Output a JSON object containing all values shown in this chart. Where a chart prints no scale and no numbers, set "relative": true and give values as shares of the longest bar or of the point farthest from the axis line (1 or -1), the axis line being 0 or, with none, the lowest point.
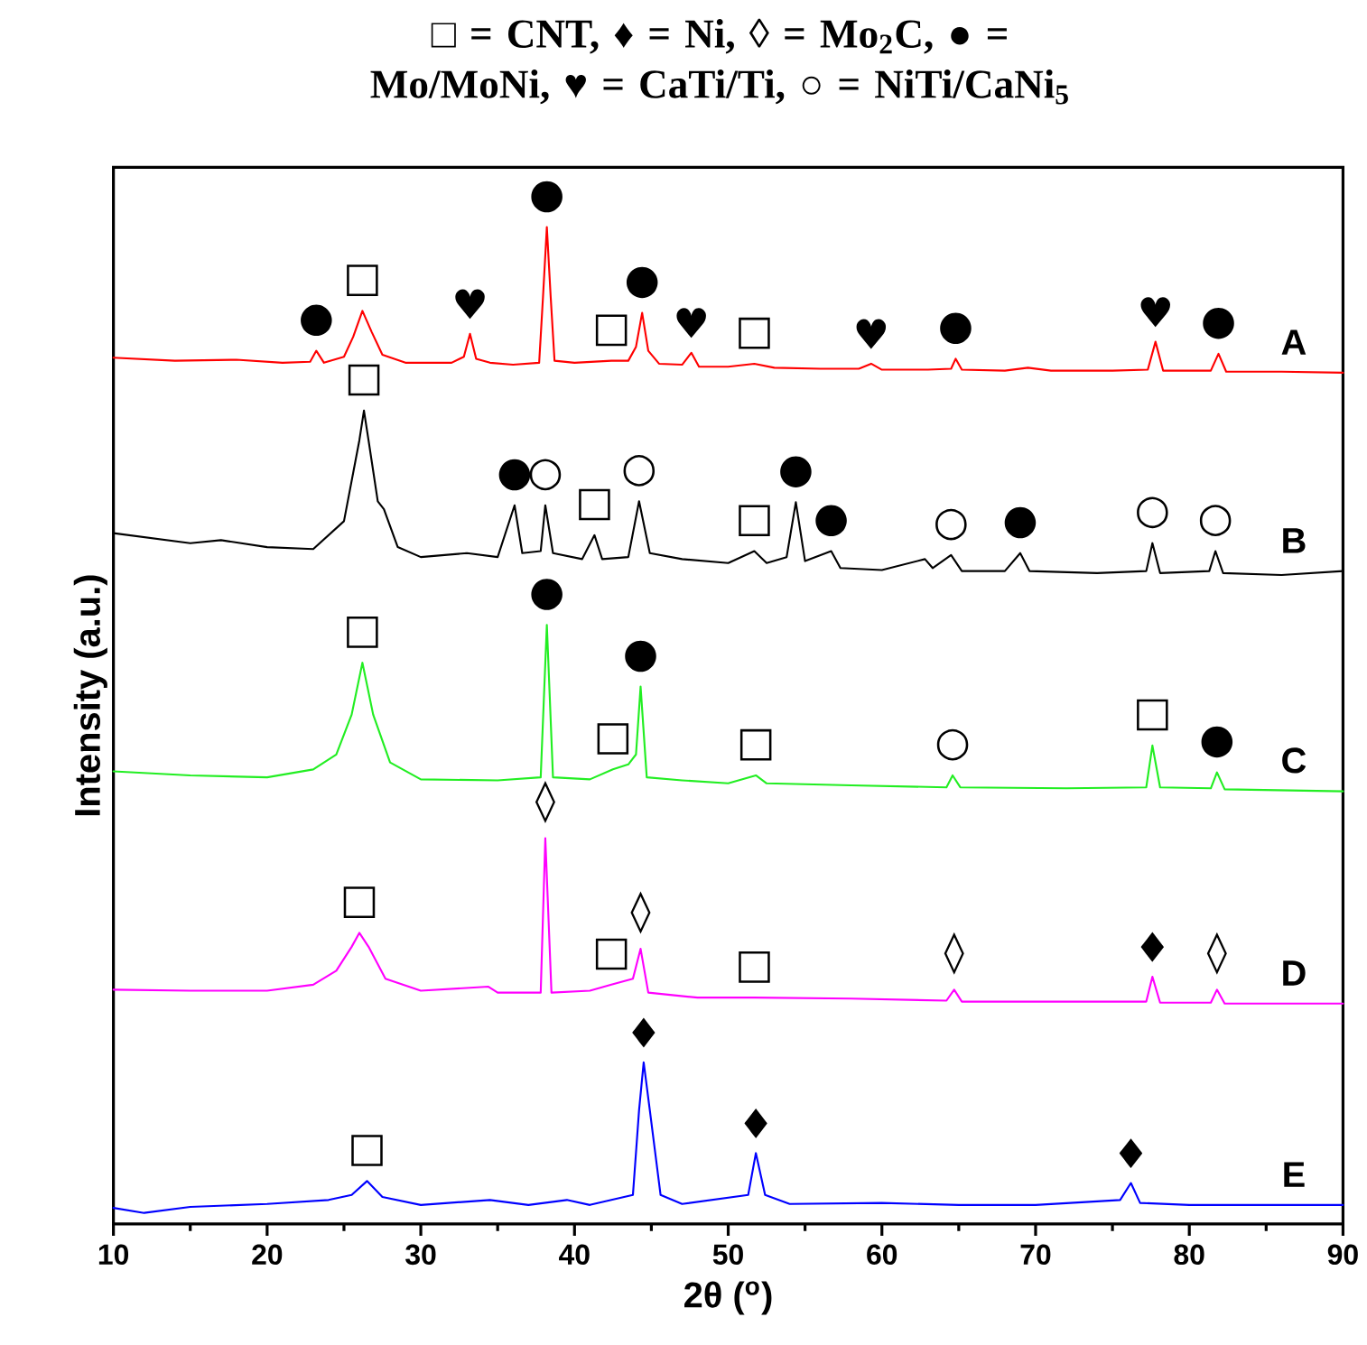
{
  "chart_data": {
    "type": "line",
    "relative": true,
    "title": "□ = CNT, ♦ = Ni, ◊ = Mo$_{2}$C, ● = Mo/MoNi, ♥ = CaTi/Ti, ○ = NiTi/CaNi$_{5}$",
    "xlabel": "2θ ($^{o}$)",
    "ylabel": "Intensity (a.u.)",
    "xlim": [
      10,
      90
    ],
    "xticks": [
      10,
      20,
      30,
      40,
      50,
      60,
      70,
      80,
      90
    ],
    "series": [
      {
        "name": "A",
        "color": "#ff0000",
        "x": [
          10,
          14,
          18,
          21,
          22.8,
          23.2,
          23.7,
          25,
          25.6,
          26.2,
          26.8,
          27.5,
          29,
          32,
          32.8,
          33.2,
          33.6,
          34.5,
          36,
          37.7,
          37.95,
          38.2,
          38.45,
          38.7,
          40,
          42.4,
          43.5,
          44.0,
          44.4,
          44.8,
          45.5,
          47,
          47.6,
          48.1,
          50,
          51.7,
          53,
          56,
          58.5,
          59.3,
          60,
          63,
          64.5,
          64.8,
          65.2,
          68,
          69.5,
          71,
          75,
          77.3,
          77.8,
          78.3,
          81.4,
          81.9,
          82.4,
          86,
          90
        ],
        "values": [
          0.869,
          0.866,
          0.867,
          0.864,
          0.865,
          0.876,
          0.864,
          0.87,
          0.89,
          0.916,
          0.895,
          0.872,
          0.864,
          0.864,
          0.87,
          0.893,
          0.868,
          0.864,
          0.862,
          0.864,
          0.93,
          1.0,
          0.93,
          0.866,
          0.864,
          0.866,
          0.866,
          0.88,
          0.914,
          0.876,
          0.863,
          0.862,
          0.874,
          0.86,
          0.86,
          0.863,
          0.859,
          0.858,
          0.858,
          0.863,
          0.857,
          0.857,
          0.858,
          0.868,
          0.857,
          0.856,
          0.859,
          0.856,
          0.856,
          0.857,
          0.885,
          0.856,
          0.856,
          0.873,
          0.855,
          0.855,
          0.854
        ]
      },
      {
        "name": "B",
        "color": "#000000",
        "x": [
          10,
          15,
          17,
          20,
          23,
          25.0,
          26.0,
          26.3,
          26.6,
          27.2,
          27.6,
          28.5,
          30,
          33,
          35,
          36.1,
          36.6,
          37.8,
          38.1,
          38.6,
          40.5,
          41.3,
          41.8,
          43.5,
          44.2,
          44.9,
          47,
          50,
          51.7,
          52.5,
          53.8,
          54.4,
          55,
          56.7,
          57.3,
          60,
          62.8,
          63.3,
          64.5,
          65.2,
          68,
          69.0,
          69.6,
          74,
          77.2,
          77.6,
          78.1,
          81.3,
          81.7,
          82.2,
          86,
          90
        ],
        "values": [
          0.693,
          0.683,
          0.686,
          0.679,
          0.677,
          0.705,
          0.786,
          0.816,
          0.786,
          0.725,
          0.717,
          0.679,
          0.669,
          0.673,
          0.669,
          0.721,
          0.673,
          0.675,
          0.721,
          0.673,
          0.667,
          0.691,
          0.667,
          0.669,
          0.725,
          0.673,
          0.667,
          0.663,
          0.675,
          0.663,
          0.669,
          0.724,
          0.665,
          0.675,
          0.658,
          0.656,
          0.667,
          0.658,
          0.671,
          0.655,
          0.655,
          0.673,
          0.655,
          0.653,
          0.655,
          0.683,
          0.653,
          0.655,
          0.675,
          0.653,
          0.651,
          0.655
        ]
      },
      {
        "name": "C",
        "color": "#22ee22",
        "x": [
          10,
          15,
          20,
          23,
          24.5,
          25.5,
          26.2,
          26.9,
          28,
          30,
          35,
          37.8,
          38.2,
          38.6,
          41,
          42.5,
          43.5,
          44.0,
          44.3,
          44.7,
          47,
          50,
          51.8,
          52.5,
          58,
          64.2,
          64.6,
          65.1,
          72,
          77.2,
          77.6,
          78.1,
          81.4,
          81.8,
          82.3,
          90
        ],
        "values": [
          0.454,
          0.45,
          0.448,
          0.456,
          0.471,
          0.511,
          0.563,
          0.511,
          0.463,
          0.446,
          0.445,
          0.448,
          0.601,
          0.448,
          0.446,
          0.456,
          0.461,
          0.471,
          0.539,
          0.448,
          0.445,
          0.442,
          0.45,
          0.442,
          0.44,
          0.438,
          0.45,
          0.438,
          0.437,
          0.438,
          0.48,
          0.438,
          0.437,
          0.453,
          0.436,
          0.434
        ]
      },
      {
        "name": "D",
        "color": "#ff00ff",
        "x": [
          10,
          15,
          20,
          23,
          24.5,
          25.5,
          26.0,
          26.6,
          27.7,
          30,
          34.4,
          35,
          37.8,
          38.1,
          38.5,
          41,
          42.4,
          43.8,
          44.3,
          44.8,
          48,
          51.7,
          58,
          64.2,
          64.7,
          65.2,
          70,
          77.2,
          77.6,
          78.1,
          81.4,
          81.8,
          82.3,
          90
        ],
        "values": [
          0.235,
          0.234,
          0.234,
          0.24,
          0.254,
          0.278,
          0.292,
          0.278,
          0.246,
          0.234,
          0.238,
          0.232,
          0.232,
          0.387,
          0.232,
          0.234,
          0.24,
          0.246,
          0.276,
          0.232,
          0.227,
          0.227,
          0.226,
          0.224,
          0.235,
          0.223,
          0.223,
          0.223,
          0.248,
          0.222,
          0.222,
          0.235,
          0.221,
          0.221
        ]
      },
      {
        "name": "E",
        "color": "#0000ff",
        "x": [
          10,
          12,
          15,
          20,
          24,
          25.5,
          26.5,
          27.5,
          30,
          34.5,
          37,
          39.5,
          41,
          43.8,
          44.2,
          44.5,
          44.9,
          45.6,
          47,
          51.3,
          51.8,
          52.4,
          54,
          60,
          65,
          70,
          75.5,
          76.2,
          76.8,
          80,
          90
        ],
        "values": [
          0.016,
          0.011,
          0.017,
          0.02,
          0.024,
          0.029,
          0.043,
          0.027,
          0.019,
          0.024,
          0.019,
          0.024,
          0.019,
          0.029,
          0.114,
          0.162,
          0.114,
          0.029,
          0.02,
          0.029,
          0.071,
          0.029,
          0.02,
          0.021,
          0.019,
          0.019,
          0.024,
          0.041,
          0.021,
          0.019,
          0.019
        ]
      }
    ],
    "annotations": [
      {
        "text": "●",
        "x": 23.2,
        "y": 0.876
      },
      {
        "text": "□",
        "x": 26.2,
        "y": 0.916
      },
      {
        "text": "♥",
        "x": 33.2,
        "y": 0.893
      },
      {
        "text": "●",
        "x": 38.2,
        "y": 1.0
      },
      {
        "text": "□",
        "x": 42.4,
        "y": 0.866
      },
      {
        "text": "●",
        "x": 44.4,
        "y": 0.914
      },
      {
        "text": "♥",
        "x": 47.6,
        "y": 0.874
      },
      {
        "text": "□",
        "x": 51.7,
        "y": 0.863
      },
      {
        "text": "♥",
        "x": 59.3,
        "y": 0.863
      },
      {
        "text": "●",
        "x": 64.8,
        "y": 0.868
      },
      {
        "text": "♥",
        "x": 77.8,
        "y": 0.885
      },
      {
        "text": "●",
        "x": 81.9,
        "y": 0.873
      },
      {
        "text": "□",
        "x": 26.3,
        "y": 0.816
      },
      {
        "text": "●",
        "x": 36.1,
        "y": 0.721
      },
      {
        "text": "○",
        "x": 38.1,
        "y": 0.721
      },
      {
        "text": "□",
        "x": 41.3,
        "y": 0.691
      },
      {
        "text": "○",
        "x": 44.2,
        "y": 0.725
      },
      {
        "text": "□",
        "x": 51.7,
        "y": 0.675
      },
      {
        "text": "●",
        "x": 54.4,
        "y": 0.724
      },
      {
        "text": "●",
        "x": 56.7,
        "y": 0.675
      },
      {
        "text": "○",
        "x": 64.5,
        "y": 0.671
      },
      {
        "text": "●",
        "x": 69.0,
        "y": 0.673
      },
      {
        "text": "○",
        "x": 77.6,
        "y": 0.683
      },
      {
        "text": "○",
        "x": 81.7,
        "y": 0.675
      },
      {
        "text": "□",
        "x": 26.2,
        "y": 0.563
      },
      {
        "text": "●",
        "x": 38.2,
        "y": 0.601
      },
      {
        "text": "□",
        "x": 42.5,
        "y": 0.456
      },
      {
        "text": "●",
        "x": 44.3,
        "y": 0.539
      },
      {
        "text": "□",
        "x": 51.8,
        "y": 0.45
      },
      {
        "text": "○",
        "x": 64.6,
        "y": 0.45
      },
      {
        "text": "□",
        "x": 77.6,
        "y": 0.48
      },
      {
        "text": "●",
        "x": 81.8,
        "y": 0.453
      },
      {
        "text": "□",
        "x": 26.0,
        "y": 0.292
      },
      {
        "text": "◊",
        "x": 38.1,
        "y": 0.387
      },
      {
        "text": "□",
        "x": 42.4,
        "y": 0.24
      },
      {
        "text": "◊",
        "x": 44.3,
        "y": 0.276
      },
      {
        "text": "□",
        "x": 51.7,
        "y": 0.227
      },
      {
        "text": "◊",
        "x": 64.7,
        "y": 0.235
      },
      {
        "text": "♦",
        "x": 77.6,
        "y": 0.248
      },
      {
        "text": "◊",
        "x": 81.8,
        "y": 0.235
      },
      {
        "text": "□",
        "x": 26.5,
        "y": 0.043
      },
      {
        "text": "♦",
        "x": 44.5,
        "y": 0.162
      },
      {
        "text": "♦",
        "x": 51.8,
        "y": 0.071
      },
      {
        "text": "♦",
        "x": 76.2,
        "y": 0.041
      }
    ]
  }
}
